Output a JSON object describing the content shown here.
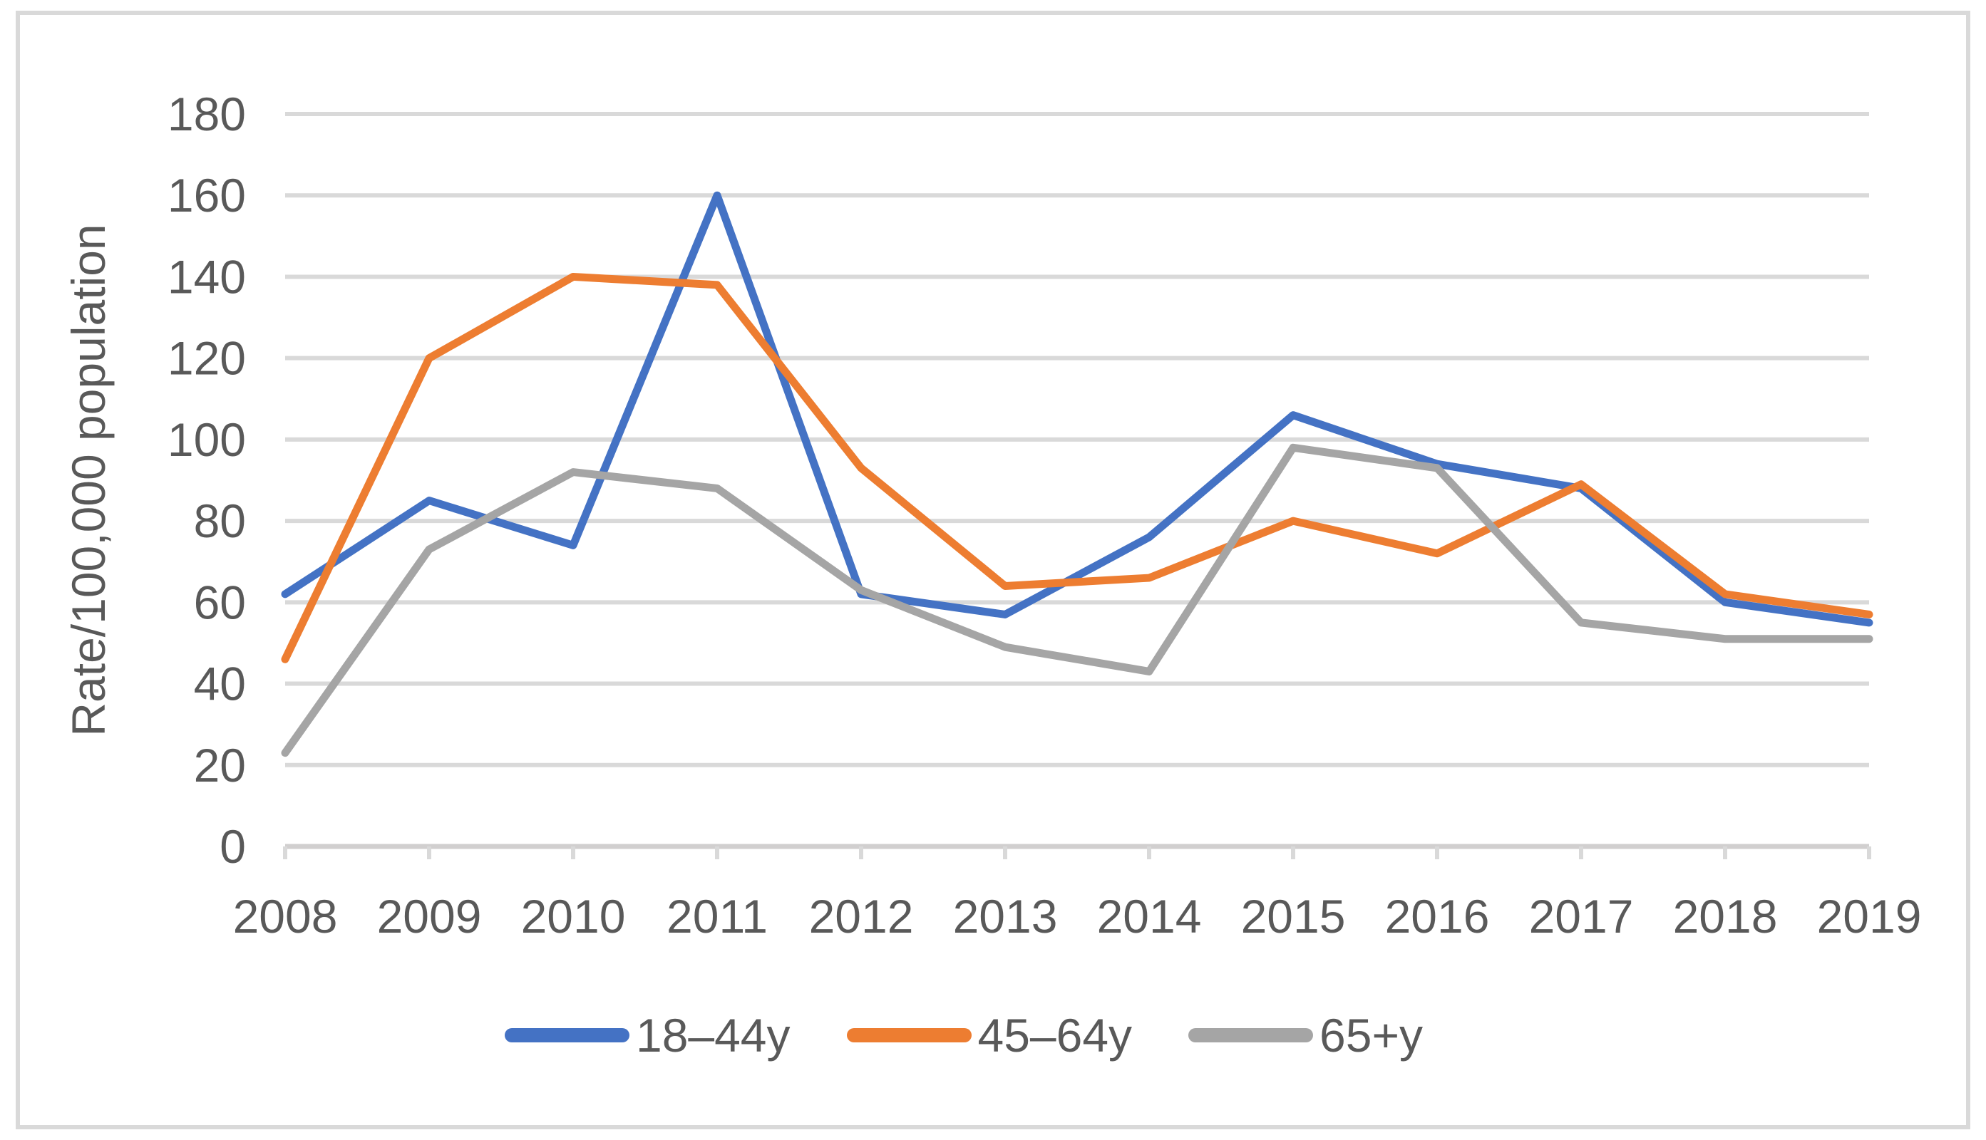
{
  "chart_data": {
    "type": "line",
    "title": "",
    "ylabel": "Rate/100,000 population",
    "xlabel": "",
    "categories": [
      "2008",
      "2009",
      "2010",
      "2011",
      "2012",
      "2013",
      "2014",
      "2015",
      "2016",
      "2017",
      "2018",
      "2019"
    ],
    "series": [
      {
        "name": "18–44y",
        "color": "#4472C4",
        "values": [
          62,
          85,
          74,
          160,
          62,
          57,
          76,
          106,
          94,
          88,
          60,
          55
        ]
      },
      {
        "name": "45–64y",
        "color": "#ED7D31",
        "values": [
          46,
          120,
          140,
          138,
          93,
          64,
          66,
          80,
          72,
          89,
          62,
          57
        ]
      },
      {
        "name": "65+y",
        "color": "#A5A5A5",
        "values": [
          23,
          73,
          92,
          88,
          63,
          49,
          43,
          98,
          93,
          55,
          51,
          51
        ]
      }
    ],
    "ylim": [
      0,
      180
    ],
    "ytick_step": 20,
    "y_tick_labels": [
      "0",
      "20",
      "40",
      "60",
      "80",
      "100",
      "120",
      "140",
      "160",
      "180"
    ],
    "grid": "horizontal",
    "legend_position": "bottom"
  },
  "colors": {
    "axis_text": "#595959",
    "gridline": "#D9D9D9",
    "axis_line": "#D1CFCF",
    "chart_border": "#D9D9D9",
    "background": "#FFFFFF"
  }
}
